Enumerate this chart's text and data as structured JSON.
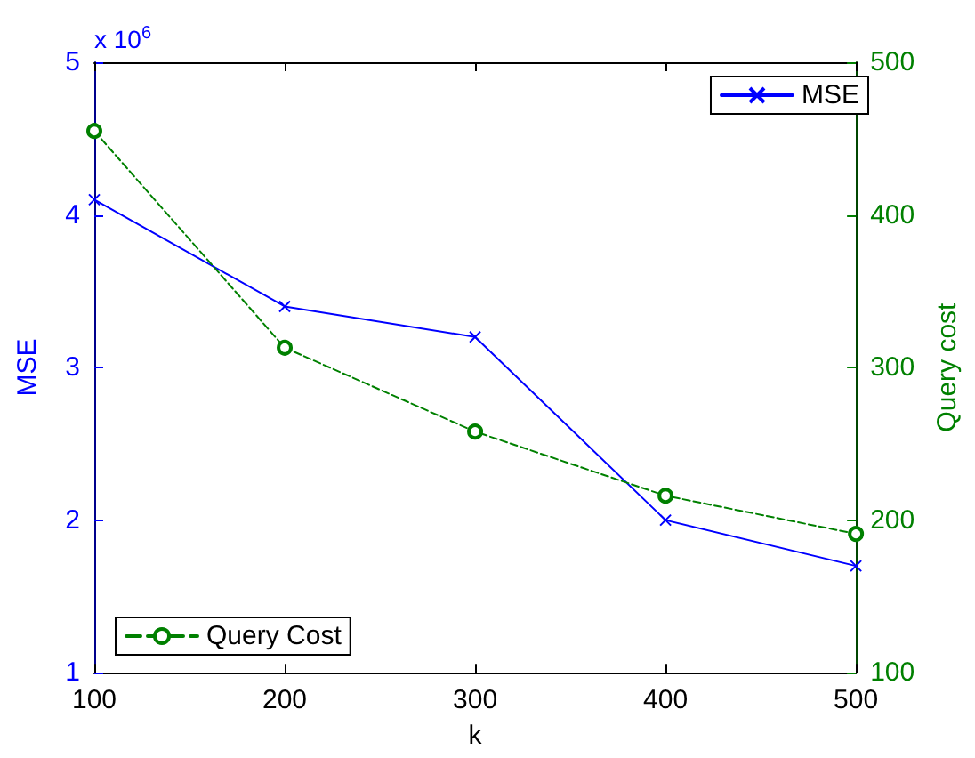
{
  "chart_data": {
    "type": "line",
    "xlabel": "k",
    "ylabel": "MSE",
    "y2label": "Query cost",
    "x": [
      100,
      200,
      300,
      400,
      500
    ],
    "series": [
      {
        "name": "MSE",
        "color": "#0000ff",
        "marker": "cross",
        "line_style": "solid",
        "values": [
          4.1,
          3.4,
          3.2,
          2.0,
          1.7
        ]
      },
      {
        "name": "Query Cost",
        "color": "#008000",
        "marker": "circle",
        "line_style": "dashed",
        "axis": "y2",
        "values": [
          455,
          313,
          258,
          216,
          191
        ]
      }
    ],
    "xlim": [
      100,
      500
    ],
    "xticks": [
      100,
      200,
      300,
      400,
      500
    ],
    "ylim": [
      1,
      5
    ],
    "yticks": [
      1,
      2,
      3,
      4,
      5
    ],
    "y2lim": [
      100,
      500
    ],
    "y2ticks": [
      100,
      200,
      300,
      400,
      500
    ],
    "annotations": [
      "x 10$^{6}$"
    ],
    "grid": false,
    "legend": "top right"
  }
}
